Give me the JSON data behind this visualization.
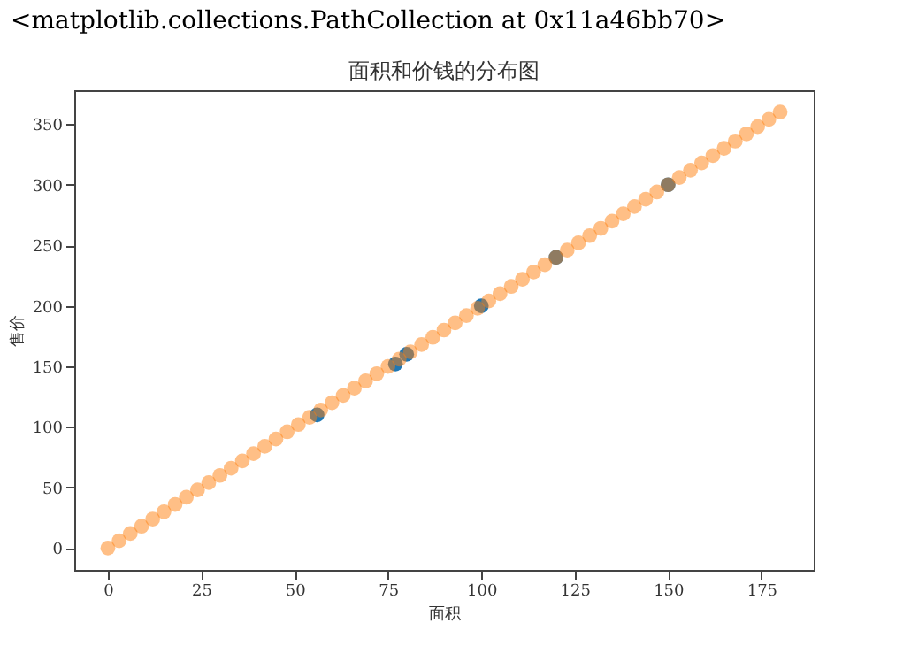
{
  "chart_data": {
    "type": "scatter",
    "title": "面积和价钱的分布图",
    "xlabel": "面积",
    "ylabel": "售价",
    "annotations": [
      "<matplotlib.collections.PathCollection at 0x11a46bb70>"
    ],
    "xlim": [
      -9,
      189
    ],
    "ylim": [
      -18,
      378
    ],
    "xticks": [
      0,
      25,
      50,
      75,
      100,
      125,
      150,
      175
    ],
    "yticks": [
      0,
      50,
      100,
      150,
      200,
      250,
      300,
      350
    ],
    "marker": "circle",
    "grid": false,
    "series": [
      {
        "color": "#1f77b4",
        "x": [
          56,
          77,
          80,
          100,
          120,
          150
        ],
        "values": [
          110,
          152,
          160,
          200,
          240,
          300
        ]
      },
      {
        "color": "#ff7f0e",
        "x": [
          0,
          3,
          6,
          9,
          12,
          15,
          18,
          21,
          24,
          27,
          30,
          33,
          36,
          39,
          42,
          45,
          48,
          51,
          54,
          57,
          60,
          63,
          66,
          69,
          72,
          75,
          78,
          81,
          84,
          87,
          90,
          93,
          96,
          99,
          102,
          105,
          108,
          111,
          114,
          117,
          120,
          123,
          126,
          129,
          132,
          135,
          138,
          141,
          144,
          147,
          150,
          153,
          156,
          159,
          162,
          165,
          168,
          171,
          174,
          177,
          180
        ],
        "values": [
          0,
          6,
          12,
          18,
          24,
          30,
          36,
          42,
          48,
          54,
          60,
          66,
          72,
          78,
          84,
          90,
          96,
          102,
          108,
          114,
          120,
          126,
          132,
          138,
          144,
          150,
          156,
          162,
          168,
          174,
          180,
          186,
          192,
          198,
          204,
          210,
          216,
          222,
          228,
          234,
          240,
          246,
          252,
          258,
          264,
          270,
          276,
          282,
          288,
          294,
          300,
          306,
          312,
          318,
          324,
          330,
          336,
          342,
          348,
          354,
          360
        ]
      }
    ]
  }
}
